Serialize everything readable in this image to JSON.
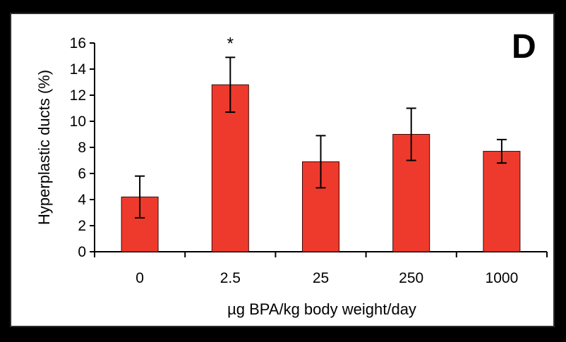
{
  "chart_data": {
    "type": "bar",
    "panel_label": "D",
    "categories": [
      "0",
      "2.5",
      "25",
      "250",
      "1000"
    ],
    "values": [
      4.2,
      12.8,
      6.9,
      9.0,
      7.7
    ],
    "errors": [
      1.6,
      2.1,
      2.0,
      2.0,
      0.9
    ],
    "annotations": [
      {
        "category": "2.5",
        "text": "*"
      }
    ],
    "xlabel": "µg BPA/kg body weight/day",
    "ylabel": "Hyperplastic ducts (%)",
    "ylim": [
      0,
      16
    ],
    "yticks": [
      0,
      2,
      4,
      6,
      8,
      10,
      12,
      14,
      16
    ],
    "bar_color": "#ee3a2c",
    "grid": false
  }
}
